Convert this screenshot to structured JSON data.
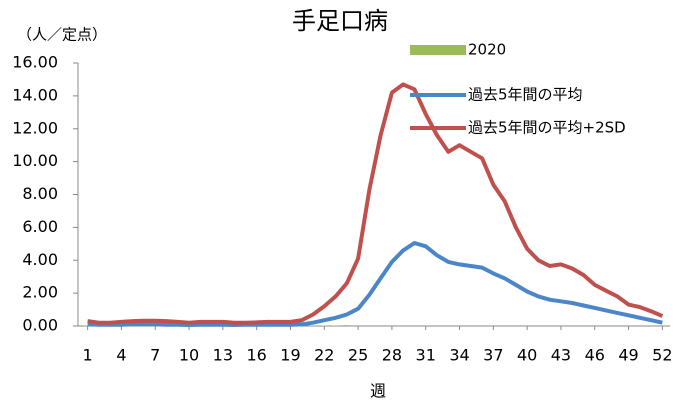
{
  "chart_data": {
    "type": "combo",
    "title": "手足口病",
    "y_label": "（人／定点）",
    "x_label": "週",
    "x": [
      1,
      2,
      3,
      4,
      5,
      6,
      7,
      8,
      9,
      10,
      11,
      12,
      13,
      14,
      15,
      16,
      17,
      18,
      19,
      20,
      21,
      22,
      23,
      24,
      25,
      26,
      27,
      28,
      29,
      30,
      31,
      32,
      33,
      34,
      35,
      36,
      37,
      38,
      39,
      40,
      41,
      42,
      43,
      44,
      45,
      46,
      47,
      48,
      49,
      50,
      51,
      52
    ],
    "xlim": [
      0.5,
      52.5
    ],
    "xticks": [
      1,
      4,
      7,
      10,
      13,
      16,
      19,
      22,
      25,
      28,
      31,
      34,
      37,
      40,
      43,
      46,
      49,
      52
    ],
    "ylim": [
      0,
      16
    ],
    "yticks": [
      {
        "value": 0,
        "label": "0.00"
      },
      {
        "value": 2,
        "label": "2.00"
      },
      {
        "value": 4,
        "label": "4.00"
      },
      {
        "value": 6,
        "label": "6.00"
      },
      {
        "value": 8,
        "label": "8.00"
      },
      {
        "value": 10,
        "label": "10.00"
      },
      {
        "value": 12,
        "label": "12.00"
      },
      {
        "value": 14,
        "label": "14.00"
      },
      {
        "value": 16,
        "label": "16.00"
      }
    ],
    "legend": "top-right",
    "series": [
      {
        "name": "2020",
        "kind": "bar",
        "color": "#9bbb59",
        "values": [
          0.02,
          0.02,
          0.02,
          0.02,
          0.02,
          0.02,
          0.02,
          0.02,
          0.02,
          0.02,
          0.02,
          0.02,
          0.02,
          0.02,
          0.02,
          0.02,
          0.02,
          0.02,
          0.02,
          0.02,
          0.02,
          0.03,
          0.03,
          0.05,
          null,
          null,
          null,
          null,
          null,
          null,
          null,
          null,
          null,
          null,
          null,
          null,
          null,
          null,
          null,
          null,
          null,
          null,
          null,
          null,
          null,
          null,
          null,
          null,
          null,
          null,
          null,
          null
        ]
      },
      {
        "name": "過去5年間の平均",
        "kind": "line",
        "color": "#4a86c8",
        "values": [
          0.1,
          0.08,
          0.08,
          0.08,
          0.1,
          0.1,
          0.1,
          0.08,
          0.07,
          0.06,
          0.07,
          0.08,
          0.08,
          0.06,
          0.07,
          0.08,
          0.08,
          0.08,
          0.08,
          0.1,
          0.2,
          0.35,
          0.5,
          0.7,
          1.05,
          1.9,
          2.9,
          3.9,
          4.6,
          5.05,
          4.85,
          4.3,
          3.9,
          3.75,
          3.65,
          3.55,
          3.2,
          2.9,
          2.5,
          2.1,
          1.8,
          1.6,
          1.5,
          1.4,
          1.25,
          1.1,
          0.95,
          0.8,
          0.65,
          0.5,
          0.35,
          0.2
        ]
      },
      {
        "name": "過去5年間の平均+2SD",
        "kind": "line",
        "color": "#c0504d",
        "values": [
          0.3,
          0.2,
          0.2,
          0.25,
          0.3,
          0.32,
          0.32,
          0.3,
          0.25,
          0.2,
          0.25,
          0.25,
          0.25,
          0.2,
          0.2,
          0.22,
          0.25,
          0.25,
          0.25,
          0.35,
          0.7,
          1.2,
          1.8,
          2.6,
          4.1,
          8.3,
          11.6,
          14.2,
          14.7,
          14.4,
          12.9,
          11.6,
          10.6,
          11.0,
          10.6,
          10.2,
          8.6,
          7.6,
          6.0,
          4.7,
          4.0,
          3.65,
          3.75,
          3.5,
          3.1,
          2.5,
          2.15,
          1.8,
          1.3,
          1.15,
          0.9,
          0.6
        ]
      }
    ]
  }
}
